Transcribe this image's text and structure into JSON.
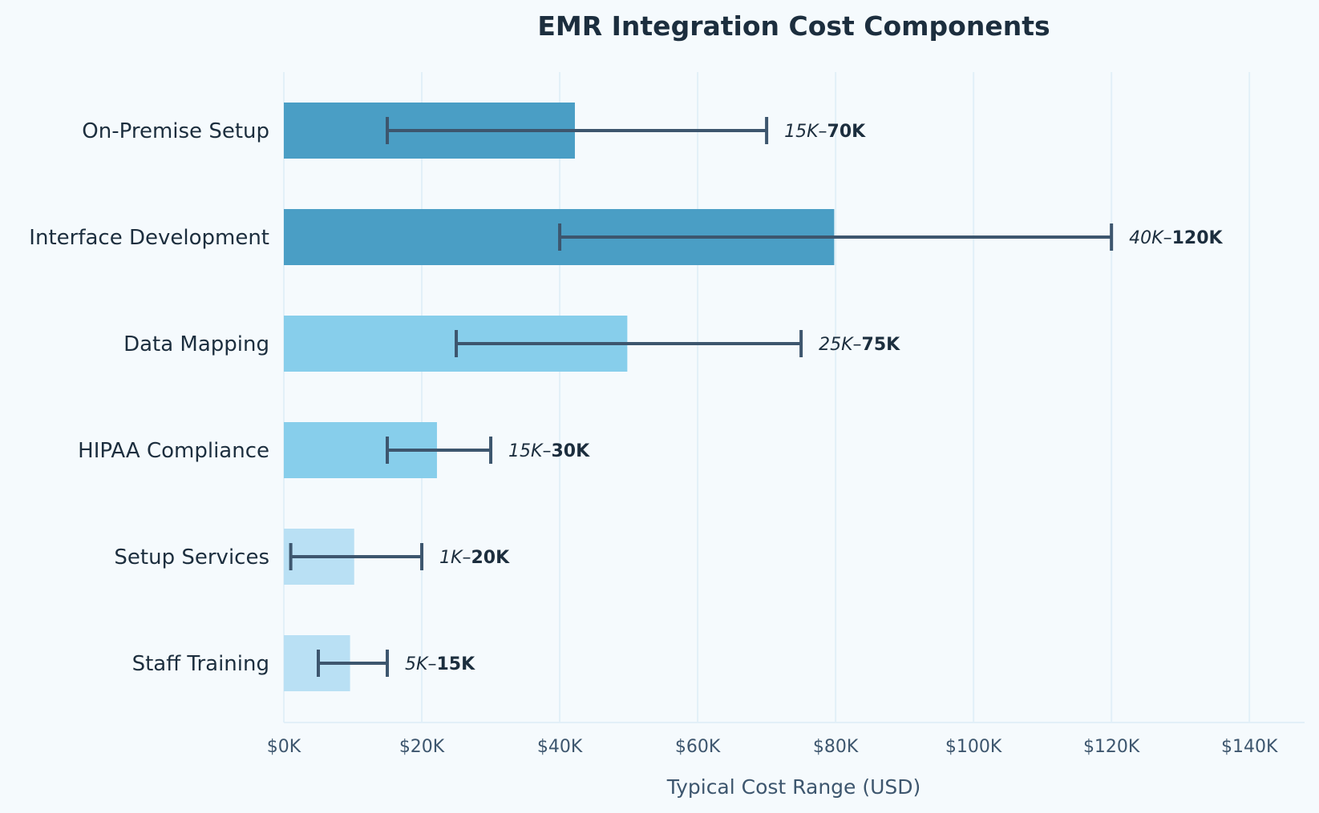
{
  "chart_data": {
    "type": "bar",
    "title": "EMR Integration Cost Components",
    "xlabel": "Typical Cost Range (USD)",
    "ylabel": "",
    "xlim": [
      0,
      148
    ],
    "x_ticks": [
      0,
      20,
      40,
      60,
      80,
      100,
      120,
      140
    ],
    "x_tick_labels": [
      "$0K",
      "$20K",
      "$40K",
      "$60K",
      "$80K",
      "$100K",
      "$120K",
      "$140K"
    ],
    "grid": "vertical",
    "orientation": "horizontal",
    "units": "thousands USD",
    "categories": [
      "On-Premise Setup",
      "Interface Development",
      "Data Mapping",
      "HIPAA Compliance",
      "Setup Services",
      "Staff Training"
    ],
    "values": [
      42.2,
      79.8,
      49.8,
      22.2,
      10.2,
      9.6
    ],
    "range_low": [
      15,
      40,
      25,
      15,
      1,
      5
    ],
    "range_high": [
      70,
      120,
      75,
      30,
      20,
      15
    ],
    "range_labels": [
      {
        "low": "15K",
        "dash": "–",
        "high": "70K"
      },
      {
        "low": "40K",
        "dash": "–",
        "high": "120K"
      },
      {
        "low": "25K",
        "dash": "–",
        "high": "75K"
      },
      {
        "low": "15K",
        "dash": "–",
        "high": "30K"
      },
      {
        "low": "1K",
        "dash": "–",
        "high": "20K"
      },
      {
        "low": "5K",
        "dash": "–",
        "high": "15K"
      }
    ],
    "bar_colors": [
      "#4a9ec5",
      "#4a9ec5",
      "#87ceeb",
      "#87ceeb",
      "#b9e0f4",
      "#b9e0f4"
    ],
    "colors": {
      "background": "#f5fafd",
      "grid": "#e2f0f8",
      "errorbar": "#3d566e",
      "title": "#1c2e3e",
      "label": "#1c2e3e",
      "tick": "#3d566e"
    }
  }
}
